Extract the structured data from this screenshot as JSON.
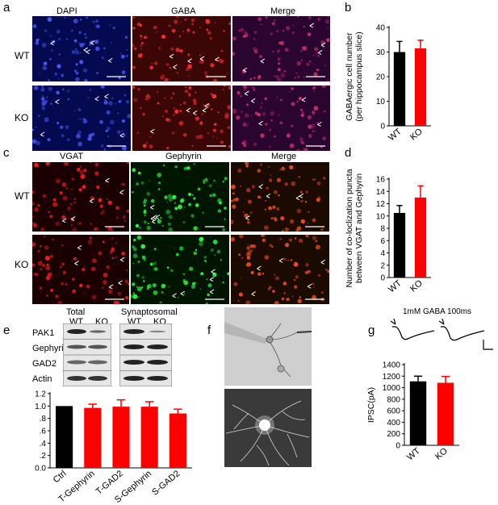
{
  "panels": {
    "a": {
      "label": "a",
      "columns": [
        "DAPI",
        "GABA",
        "Merge"
      ],
      "rows": [
        "WT",
        "KO"
      ]
    },
    "b": {
      "label": "b",
      "chart_data": {
        "type": "bar",
        "categories": [
          "WT",
          "KO"
        ],
        "values": [
          30,
          31.5
        ],
        "errors": [
          4.3,
          3.3
        ],
        "ylabel_line1": "GABAergic cell number",
        "ylabel_line2": "(per hippocampus slice)",
        "ylim": [
          0,
          40
        ],
        "ticks": [
          "0",
          "10",
          "20",
          "30",
          "40"
        ],
        "colors": [
          "#000000",
          "#ff0000"
        ]
      }
    },
    "c": {
      "label": "c",
      "columns": [
        "VGAT",
        "Gephyrin",
        "Merge"
      ],
      "rows": [
        "WT",
        "KO"
      ]
    },
    "d": {
      "label": "d",
      "chart_data": {
        "type": "bar",
        "categories": [
          "WT",
          "KO"
        ],
        "values": [
          10.5,
          13.0
        ],
        "errors": [
          1.2,
          1.9
        ],
        "ylabel_line1": "Number of co-loclization puncta",
        "ylabel_line2": "between VGAT and Gephyrin",
        "ylim": [
          0,
          16
        ],
        "ticks": [
          "0",
          "2",
          "4",
          "6",
          "8",
          "10",
          "12",
          "14",
          "16"
        ],
        "colors": [
          "#000000",
          "#ff0000"
        ]
      }
    },
    "e": {
      "label": "e",
      "blot": {
        "groups": [
          "Total",
          "Synaptosomal"
        ],
        "lanes": [
          "WT",
          "KO",
          "WT",
          "KO"
        ],
        "proteins": [
          "PAK1",
          "Gephyrin",
          "GAD2",
          "Actin"
        ]
      },
      "chart_data": {
        "type": "bar",
        "categories": [
          "Ctrl",
          "T-Gephyrin",
          "T-GAD2",
          "S-Gephyrin",
          "S-GAD2"
        ],
        "values": [
          1.0,
          0.97,
          0.99,
          0.99,
          0.88
        ],
        "errors": [
          0,
          0.06,
          0.11,
          0.08,
          0.07
        ],
        "ylim": [
          0,
          1.2
        ],
        "ticks": [
          "0.0",
          ".2",
          ".4",
          ".6",
          ".8",
          "1.0",
          "1.2"
        ],
        "colors": [
          "#000000",
          "#ff0000",
          "#ff0000",
          "#ff0000",
          "#ff0000"
        ]
      }
    },
    "f": {
      "label": "f"
    },
    "g": {
      "label": "g",
      "trace_label": "1mM GABA 100ms",
      "chart_data": {
        "type": "bar",
        "categories": [
          "WT",
          "KO"
        ],
        "values": [
          1110,
          1085
        ],
        "errors": [
          90,
          110
        ],
        "ylabel": "IPSC(pA)",
        "ylim": [
          0,
          1400
        ],
        "ticks": [
          "0",
          "200",
          "400",
          "600",
          "800",
          "1000",
          "1200",
          "1400"
        ],
        "colors": [
          "#000000",
          "#ff0000"
        ]
      }
    }
  }
}
